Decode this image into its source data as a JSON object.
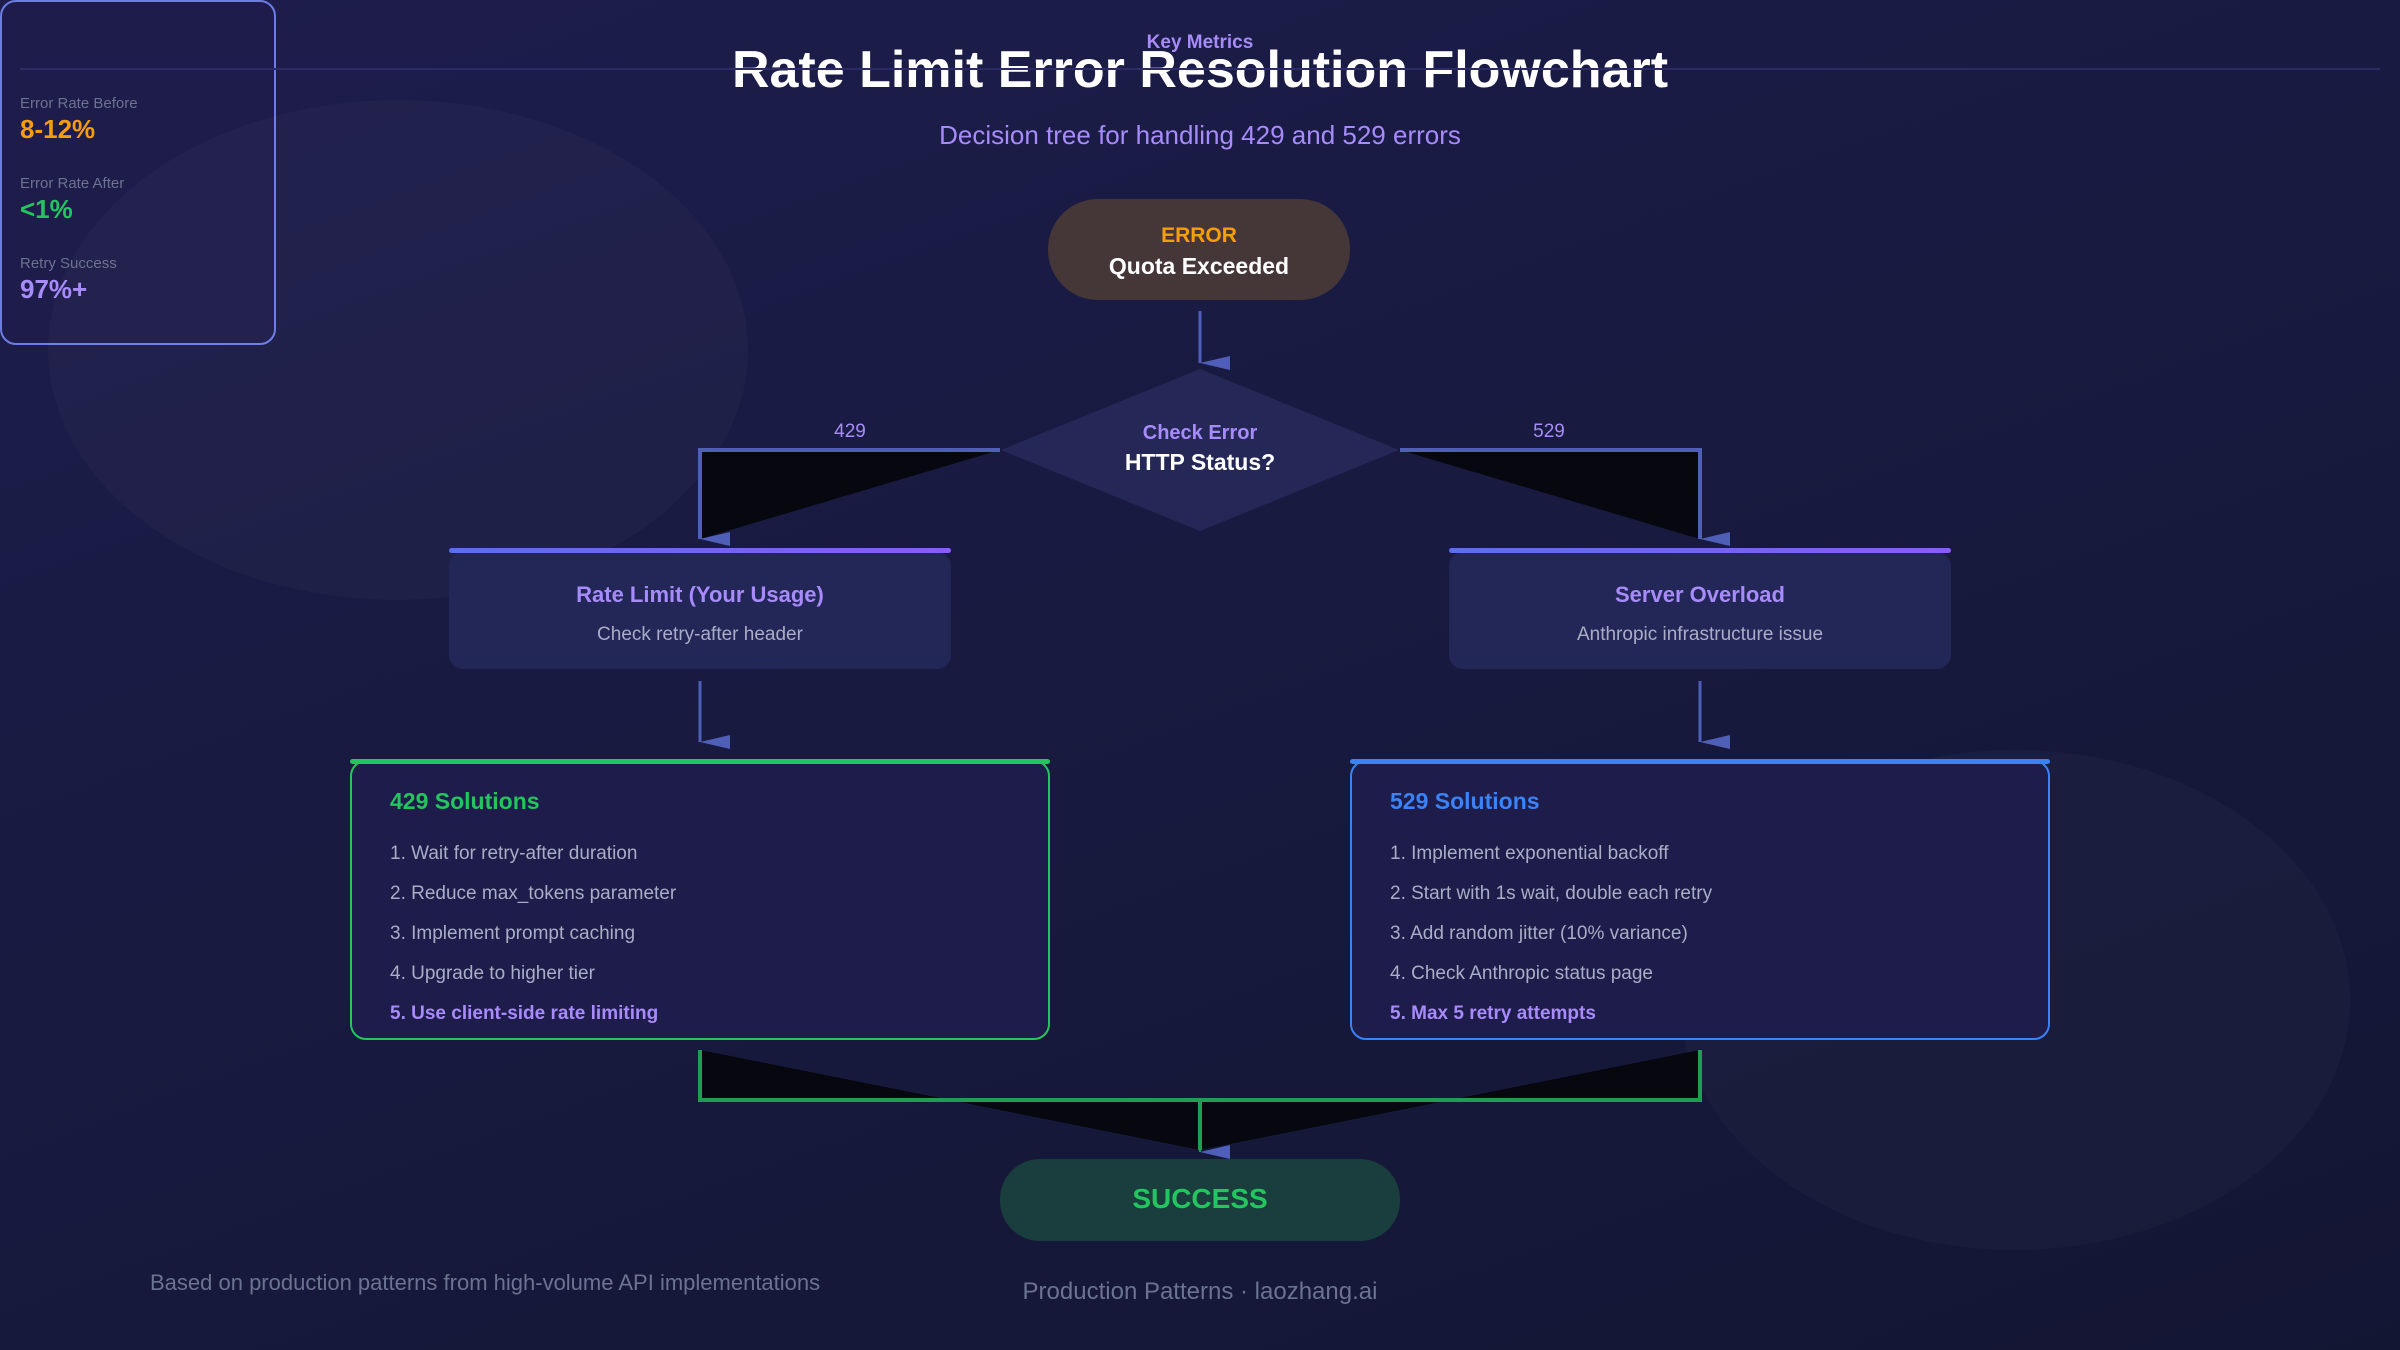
{
  "title": "Rate Limit Error Resolution Flowchart",
  "subtitle": "Decision tree for handling 429 and 529 errors",
  "colors": {
    "accent_purple": "#a78bfa",
    "warning_orange": "#f59e0b",
    "success_green": "#22c55e",
    "info_blue": "#3b82f6",
    "arrow": "#4f5fb8"
  },
  "metrics": {
    "heading": "Key Metrics",
    "items": [
      {
        "label": "Error Rate Before",
        "value": "8-12%",
        "color": "#f59e0b"
      },
      {
        "label": "Error Rate After",
        "value": "<1%",
        "color": "#22c55e"
      },
      {
        "label": "Retry Success",
        "value": "97%+",
        "color": "#a78bfa"
      }
    ]
  },
  "start": {
    "label": "ERROR",
    "text": "Quota Exceeded"
  },
  "decision": {
    "label": "Check Error",
    "text": "HTTP Status?"
  },
  "branches": {
    "left": "429",
    "right": "529"
  },
  "left_node": {
    "title": "Rate Limit (Your Usage)",
    "subtitle": "Check retry-after header"
  },
  "right_node": {
    "title": "Server Overload",
    "subtitle": "Anthropic infrastructure issue"
  },
  "left_solutions": {
    "title": "429 Solutions",
    "items": [
      "1. Wait for retry-after duration",
      "2. Reduce max_tokens parameter",
      "3. Implement prompt caching",
      "4. Upgrade to higher tier",
      "5. Use client-side rate limiting"
    ]
  },
  "right_solutions": {
    "title": "529 Solutions",
    "items": [
      "1. Implement exponential backoff",
      "2. Start with 1s wait, double each retry",
      "3. Add random jitter (10% variance)",
      "4. Check Anthropic status page",
      "5. Max 5 retry attempts"
    ]
  },
  "end": {
    "text": "SUCCESS"
  },
  "footer": {
    "left": "Based on production patterns from high-volume API implementations",
    "center": "Production Patterns · laozhang.ai"
  }
}
